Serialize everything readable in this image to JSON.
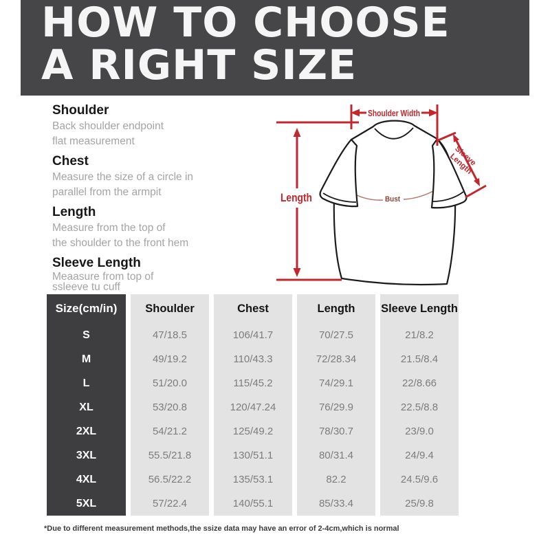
{
  "header": {
    "line1": "HOW TO CHOOSE",
    "line2": "A RIGHT SIZE"
  },
  "guide": {
    "sections": [
      {
        "title": "Shoulder",
        "lines": [
          "Back shoulder endpoint",
          "flat measurement"
        ]
      },
      {
        "title": "Chest",
        "lines": [
          "Measure the size of a circle in",
          "parallel from the armpit"
        ]
      },
      {
        "title": "Length",
        "lines": [
          "Measure from the top of",
          "the shoulder to the front hem"
        ]
      },
      {
        "title": "Sleeve Length",
        "lines": [
          "Meaasure from top of",
          "ssleeve tu cuff"
        ]
      }
    ]
  },
  "diagram": {
    "labels": {
      "shoulder_width": "Shoulder Width",
      "length": "Length",
      "sleeve_line1": "Sleeve",
      "sleeve_line2": "Length",
      "bust": "Bust"
    },
    "colors": {
      "arrow_red": "#c1272d",
      "bust_line": "#b2756b",
      "bust_text": "#8d4137",
      "outline": "#1b1b1b"
    }
  },
  "table": {
    "header": [
      "Size(cm/in)",
      "Shoulder",
      "Chest",
      "Length",
      "Sleeve Length"
    ],
    "rows": [
      [
        "S",
        "47/18.5",
        "106/41.7",
        "70/27.5",
        "21/8.2"
      ],
      [
        "M",
        "49/19.2",
        "110/43.3",
        "72/28.34",
        "21.5/8.4"
      ],
      [
        "L",
        "51/20.0",
        "115/45.2",
        "74/29.1",
        "22/8.66"
      ],
      [
        "XL",
        "53/20.8",
        "120/47.24",
        "76/29.9",
        "22.5/8.8"
      ],
      [
        "2XL",
        "54/21.2",
        "125/49.2",
        "78/30.7",
        "23/9.0"
      ],
      [
        "3XL",
        "55.5/21.8",
        "130/51.1",
        "80/31.4",
        "24/9.4"
      ],
      [
        "4XL",
        "56.5/22.2",
        "135/53.1",
        "82.2",
        "24.5/9.6"
      ],
      [
        "5XL",
        "57/22.4",
        "140/55.1",
        "85/33.4",
        "25/9.8"
      ]
    ]
  },
  "footnote": {
    "text": "*Due to different measurement methods,the ssize data may have an error of 2-4cm,which is normal"
  },
  "colors": {
    "banner_bg": "#464648",
    "table_dark": "#3e3e40",
    "table_light": "#e3e3e3"
  }
}
